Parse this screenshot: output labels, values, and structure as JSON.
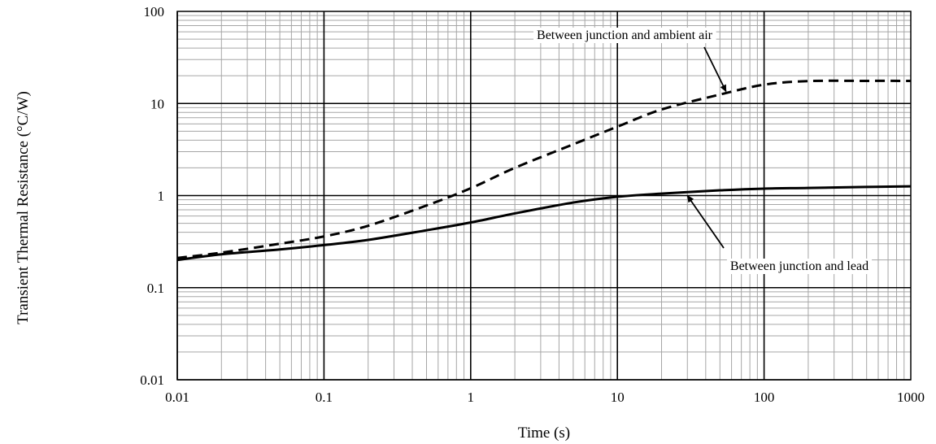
{
  "chart_data": {
    "type": "line",
    "title": "",
    "xlabel": "Time (s)",
    "ylabel": "Transient Thermal Resistance (°C/W)",
    "x_scale": "log",
    "y_scale": "log",
    "xlim": [
      0.01,
      1000
    ],
    "ylim": [
      0.01,
      100
    ],
    "grid": true,
    "x_ticks": [
      "0.01",
      "0.1",
      "1",
      "10",
      "100",
      "1000"
    ],
    "y_ticks": [
      "100",
      "10",
      "1",
      "0.1",
      "0.01"
    ],
    "series": [
      {
        "name": "Between junction and ambient air",
        "style": "dashed",
        "color": "#000000",
        "x": [
          0.01,
          0.02,
          0.05,
          0.1,
          0.2,
          0.5,
          1,
          2,
          5,
          10,
          20,
          50,
          100,
          200,
          500,
          1000
        ],
        "y": [
          0.21,
          0.24,
          0.3,
          0.36,
          0.47,
          0.78,
          1.2,
          2.0,
          3.6,
          5.6,
          8.6,
          12.5,
          16,
          17.5,
          17.6,
          17.6
        ]
      },
      {
        "name": "Between junction and lead",
        "style": "solid",
        "color": "#000000",
        "x": [
          0.01,
          0.02,
          0.05,
          0.1,
          0.2,
          0.5,
          1,
          2,
          5,
          10,
          20,
          50,
          100,
          200,
          500,
          1000
        ],
        "y": [
          0.2,
          0.23,
          0.26,
          0.29,
          0.33,
          0.42,
          0.51,
          0.64,
          0.84,
          0.97,
          1.05,
          1.14,
          1.19,
          1.21,
          1.24,
          1.26
        ]
      }
    ],
    "annotations": [
      {
        "text": "Between junction and ambient air",
        "series": 0,
        "point_x": 55,
        "point_y": 13.5
      },
      {
        "text": "Between junction and lead",
        "series": 1,
        "point_x": 30,
        "point_y": 1.0
      }
    ]
  }
}
